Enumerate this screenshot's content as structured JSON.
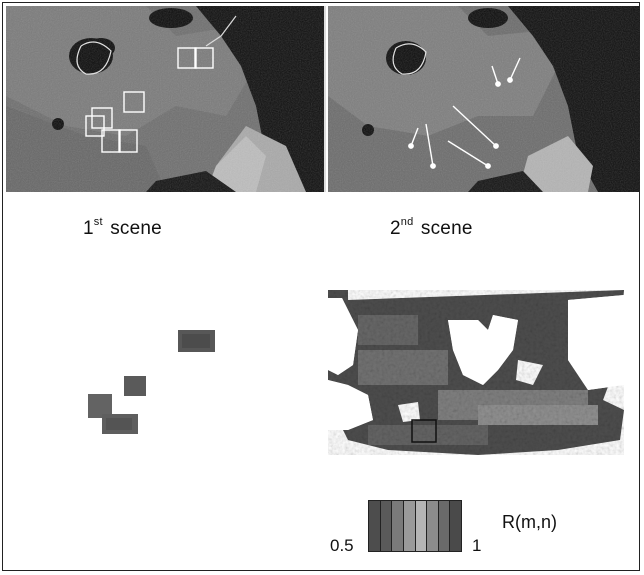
{
  "figure": {
    "scene1_caption": {
      "prefix": "1",
      "sup": "st",
      "suffix": " scene"
    },
    "scene2_caption": {
      "prefix": "2",
      "sup": "nd",
      "suffix": " scene"
    },
    "colorbar": {
      "min_label": "0.5",
      "max_label": "1",
      "title": "R(m,n)",
      "colors": [
        "#4d4d4d",
        "#5a5a5a",
        "#7a7a7a",
        "#9a9a9a",
        "#b5b5b5",
        "#8c8c8c",
        "#6a6a6a",
        "#4a4a4a"
      ]
    }
  }
}
